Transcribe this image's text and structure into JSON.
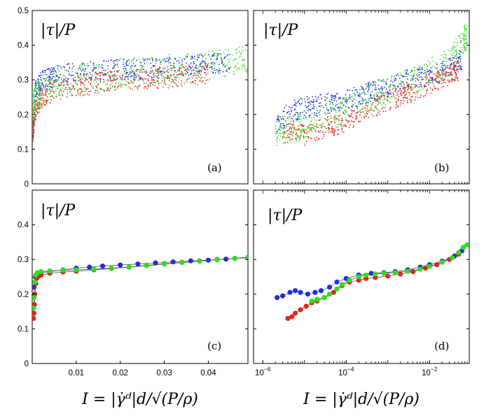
{
  "colors": {
    "red": "#e8231f",
    "blue": "#1f2fe0",
    "green": "#29e01f"
  },
  "chart_data": [
    {
      "id": "a",
      "type": "scatter",
      "panel_label": "(a)",
      "title": "|τ|/P",
      "xscale": "linear",
      "xlim": [
        0,
        0.049
      ],
      "ylim": [
        0,
        0.5
      ],
      "yticks": [
        "0",
        "0.1",
        "0.2",
        "0.3",
        "0.4",
        "0.5"
      ],
      "xticks": [],
      "xlabel": "",
      "series": [
        {
          "color": "blue",
          "points": [
            [
              0.0005,
              0.26
            ],
            [
              0.002,
              0.295
            ],
            [
              0.005,
              0.31
            ],
            [
              0.01,
              0.32
            ],
            [
              0.015,
              0.325
            ],
            [
              0.02,
              0.33
            ],
            [
              0.025,
              0.33
            ],
            [
              0.03,
              0.335
            ],
            [
              0.035,
              0.34
            ],
            [
              0.04,
              0.345
            ],
            [
              0.045,
              0.35
            ]
          ]
        },
        {
          "color": "red",
          "points": [
            [
              0.0002,
              0.14
            ],
            [
              0.0005,
              0.2
            ],
            [
              0.002,
              0.25
            ],
            [
              0.005,
              0.27
            ],
            [
              0.01,
              0.28
            ],
            [
              0.015,
              0.29
            ],
            [
              0.02,
              0.3
            ],
            [
              0.025,
              0.3
            ],
            [
              0.03,
              0.305
            ],
            [
              0.035,
              0.31
            ],
            [
              0.04,
              0.32
            ]
          ]
        },
        {
          "color": "green",
          "points": [
            [
              0.0002,
              0.2
            ],
            [
              0.0005,
              0.24
            ],
            [
              0.002,
              0.27
            ],
            [
              0.005,
              0.29
            ],
            [
              0.01,
              0.3
            ],
            [
              0.015,
              0.31
            ],
            [
              0.02,
              0.32
            ],
            [
              0.025,
              0.325
            ],
            [
              0.03,
              0.33
            ],
            [
              0.035,
              0.335
            ],
            [
              0.04,
              0.34
            ],
            [
              0.045,
              0.35
            ],
            [
              0.049,
              0.36
            ]
          ]
        }
      ]
    },
    {
      "id": "b",
      "type": "scatter",
      "panel_label": "(b)",
      "title": "|τ|/P",
      "xscale": "log",
      "xlim": [
        6e-07,
        0.09
      ],
      "ylim": [
        0,
        0.5
      ],
      "yticks": [],
      "xticks": [],
      "xlabel": "",
      "series": [
        {
          "color": "blue",
          "points": [
            [
              2e-06,
              0.17
            ],
            [
              5e-06,
              0.21
            ],
            [
              1e-05,
              0.22
            ],
            [
              3e-05,
              0.23
            ],
            [
              0.0001,
              0.24
            ],
            [
              0.0003,
              0.26
            ],
            [
              0.001,
              0.28
            ],
            [
              0.003,
              0.3
            ],
            [
              0.01,
              0.31
            ],
            [
              0.03,
              0.33
            ],
            [
              0.06,
              0.36
            ]
          ]
        },
        {
          "color": "red",
          "points": [
            [
              3e-06,
              0.15
            ],
            [
              1e-05,
              0.14
            ],
            [
              3e-05,
              0.16
            ],
            [
              0.0001,
              0.18
            ],
            [
              0.0003,
              0.21
            ],
            [
              0.001,
              0.24
            ],
            [
              0.003,
              0.26
            ],
            [
              0.01,
              0.29
            ],
            [
              0.03,
              0.31
            ],
            [
              0.05,
              0.33
            ]
          ]
        },
        {
          "color": "green",
          "points": [
            [
              2e-06,
              0.15
            ],
            [
              5e-06,
              0.16
            ],
            [
              1e-05,
              0.17
            ],
            [
              3e-05,
              0.19
            ],
            [
              0.0001,
              0.21
            ],
            [
              0.0003,
              0.24
            ],
            [
              0.001,
              0.27
            ],
            [
              0.003,
              0.29
            ],
            [
              0.01,
              0.32
            ],
            [
              0.03,
              0.35
            ],
            [
              0.06,
              0.4
            ],
            [
              0.08,
              0.43
            ]
          ]
        }
      ]
    },
    {
      "id": "c",
      "type": "line",
      "panel_label": "(c)",
      "title": "|τ|/P",
      "xscale": "linear",
      "xlim": [
        0,
        0.049
      ],
      "ylim": [
        0,
        0.5
      ],
      "yticks": [
        "0",
        "0.1",
        "0.2",
        "0.3",
        "0.4"
      ],
      "xticks": [
        "0.01",
        "0.02",
        "0.03",
        "0.04"
      ],
      "xtick_values": [
        0.01,
        0.02,
        0.03,
        0.04
      ],
      "xlabel": "I = |γ̇ᵈ|d/√(P/ρ)",
      "series": [
        {
          "color": "blue",
          "points": [
            [
              0.0004,
              0.22
            ],
            [
              0.0007,
              0.25
            ],
            [
              0.0012,
              0.26
            ],
            [
              0.002,
              0.262
            ],
            [
              0.004,
              0.265
            ],
            [
              0.007,
              0.27
            ],
            [
              0.01,
              0.275
            ],
            [
              0.013,
              0.278
            ],
            [
              0.016,
              0.281
            ],
            [
              0.02,
              0.284
            ],
            [
              0.024,
              0.287
            ],
            [
              0.028,
              0.29
            ],
            [
              0.032,
              0.293
            ],
            [
              0.036,
              0.296
            ],
            [
              0.04,
              0.298
            ],
            [
              0.044,
              0.301
            ],
            [
              0.049,
              0.305
            ]
          ]
        },
        {
          "color": "red",
          "points": [
            [
              0.0003,
              0.13
            ],
            [
              0.0004,
              0.145
            ],
            [
              0.0005,
              0.17
            ],
            [
              0.0006,
              0.2
            ],
            [
              0.0008,
              0.23
            ],
            [
              0.001,
              0.245
            ],
            [
              0.0015,
              0.252
            ],
            [
              0.002,
              0.255
            ],
            [
              0.004,
              0.26
            ],
            [
              0.007,
              0.264
            ],
            [
              0.01,
              0.266
            ],
            [
              0.014,
              0.27
            ],
            [
              0.018,
              0.274
            ],
            [
              0.022,
              0.278
            ],
            [
              0.026,
              0.283
            ],
            [
              0.03,
              0.288
            ],
            [
              0.034,
              0.292
            ],
            [
              0.038,
              0.296
            ],
            [
              0.042,
              0.3
            ],
            [
              0.046,
              0.303
            ],
            [
              0.049,
              0.306
            ]
          ]
        },
        {
          "color": "green",
          "points": [
            [
              0.0003,
              0.16
            ],
            [
              0.0004,
              0.19
            ],
            [
              0.0006,
              0.235
            ],
            [
              0.0008,
              0.255
            ],
            [
              0.0012,
              0.262
            ],
            [
              0.002,
              0.265
            ],
            [
              0.004,
              0.267
            ],
            [
              0.007,
              0.269
            ],
            [
              0.01,
              0.27
            ],
            [
              0.014,
              0.272
            ],
            [
              0.018,
              0.275
            ],
            [
              0.022,
              0.278
            ],
            [
              0.026,
              0.282
            ],
            [
              0.03,
              0.287
            ],
            [
              0.034,
              0.291
            ],
            [
              0.038,
              0.295
            ],
            [
              0.042,
              0.299
            ],
            [
              0.046,
              0.303
            ],
            [
              0.049,
              0.307
            ]
          ]
        }
      ]
    },
    {
      "id": "d",
      "type": "line",
      "panel_label": "(d)",
      "title": "|τ|/P",
      "xscale": "log",
      "xlim": [
        6e-07,
        0.09
      ],
      "ylim": [
        0,
        0.5
      ],
      "yticks": [],
      "xticks": [
        "10",
        "10",
        "10"
      ],
      "xtick_exponents": [
        "−6",
        "−4",
        "−2"
      ],
      "xtick_values": [
        1e-06,
        0.0001,
        0.01
      ],
      "xlabel": "I = |γ̇ᵈ|d/√(P/ρ)",
      "series": [
        {
          "color": "blue",
          "points": [
            [
              2.2e-06,
              0.19
            ],
            [
              3e-06,
              0.195
            ],
            [
              4.5e-06,
              0.205
            ],
            [
              6e-06,
              0.21
            ],
            [
              8e-06,
              0.205
            ],
            [
              1.2e-05,
              0.2
            ],
            [
              1.8e-05,
              0.205
            ],
            [
              2.5e-05,
              0.21
            ],
            [
              4e-05,
              0.22
            ],
            [
              6e-05,
              0.235
            ],
            [
              0.0001,
              0.245
            ],
            [
              0.0002,
              0.255
            ],
            [
              0.0004,
              0.26
            ],
            [
              0.0008,
              0.262
            ],
            [
              0.0015,
              0.265
            ],
            [
              0.003,
              0.27
            ],
            [
              0.006,
              0.278
            ],
            [
              0.01,
              0.285
            ],
            [
              0.02,
              0.295
            ],
            [
              0.04,
              0.31
            ],
            [
              0.06,
              0.325
            ]
          ]
        },
        {
          "color": "red",
          "points": [
            [
              4e-06,
              0.13
            ],
            [
              5e-06,
              0.135
            ],
            [
              6e-06,
              0.145
            ],
            [
              8e-06,
              0.155
            ],
            [
              1.1e-05,
              0.165
            ],
            [
              1.5e-05,
              0.175
            ],
            [
              2e-05,
              0.18
            ],
            [
              3e-05,
              0.19
            ],
            [
              5e-05,
              0.205
            ],
            [
              8e-05,
              0.225
            ],
            [
              0.00012,
              0.235
            ],
            [
              0.0002,
              0.24
            ],
            [
              0.0003,
              0.245
            ],
            [
              0.0005,
              0.248
            ],
            [
              0.001,
              0.252
            ],
            [
              0.002,
              0.258
            ],
            [
              0.004,
              0.265
            ],
            [
              0.008,
              0.275
            ],
            [
              0.015,
              0.285
            ],
            [
              0.03,
              0.3
            ],
            [
              0.05,
              0.315
            ]
          ]
        },
        {
          "color": "green",
          "points": [
            [
              1.5e-05,
              0.18
            ],
            [
              2e-05,
              0.185
            ],
            [
              3e-05,
              0.19
            ],
            [
              4e-05,
              0.2
            ],
            [
              6e-05,
              0.215
            ],
            [
              8e-05,
              0.228
            ],
            [
              0.00012,
              0.24
            ],
            [
              0.0002,
              0.25
            ],
            [
              0.0003,
              0.255
            ],
            [
              0.0005,
              0.258
            ],
            [
              0.0008,
              0.26
            ],
            [
              0.0015,
              0.262
            ],
            [
              0.003,
              0.266
            ],
            [
              0.006,
              0.272
            ],
            [
              0.01,
              0.28
            ],
            [
              0.02,
              0.292
            ],
            [
              0.035,
              0.305
            ],
            [
              0.05,
              0.32
            ],
            [
              0.065,
              0.335
            ],
            [
              0.08,
              0.342
            ]
          ]
        }
      ]
    }
  ]
}
